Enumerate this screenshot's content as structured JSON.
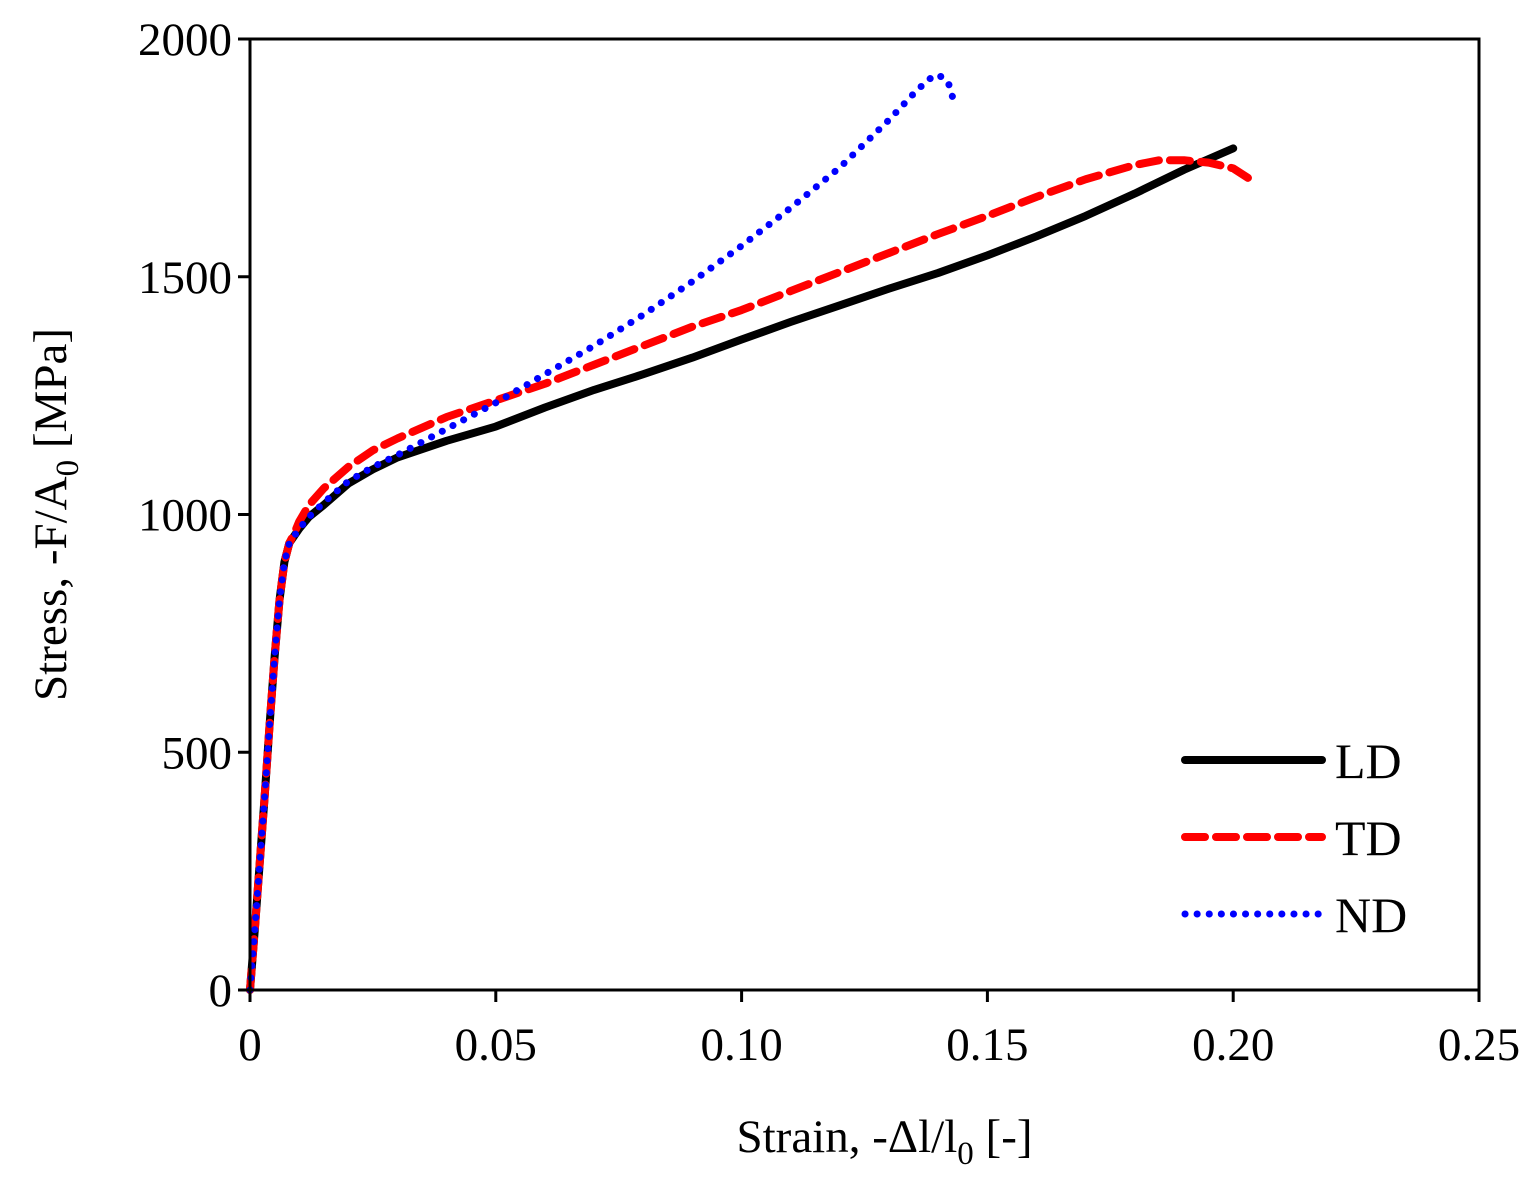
{
  "chart_data": {
    "type": "line",
    "title": "",
    "xlabel": {
      "main": "Strain, -Δl/l",
      "sub": "0",
      "tail": " [-]"
    },
    "ylabel": {
      "main": "Stress, -F/A",
      "sub": "0",
      "tail": " [MPa]"
    },
    "xlim": [
      0,
      0.25
    ],
    "ylim": [
      0,
      2000
    ],
    "xticks": [
      0,
      0.05,
      0.1,
      0.15,
      0.2,
      0.25
    ],
    "xtick_labels": [
      "0",
      "0.05",
      "0.10",
      "0.15",
      "0.20",
      "0.25"
    ],
    "yticks": [
      0,
      500,
      1000,
      1500,
      2000
    ],
    "ytick_labels": [
      "0",
      "500",
      "1000",
      "1500",
      "2000"
    ],
    "grid": false,
    "legend_position": "bottom-right",
    "series": [
      {
        "name": "LD",
        "color": "#000000",
        "style": "solid",
        "x": [
          0,
          0.001,
          0.002,
          0.003,
          0.004,
          0.005,
          0.006,
          0.007,
          0.008,
          0.009,
          0.01,
          0.012,
          0.015,
          0.02,
          0.025,
          0.03,
          0.04,
          0.05,
          0.06,
          0.07,
          0.08,
          0.09,
          0.1,
          0.11,
          0.12,
          0.13,
          0.14,
          0.15,
          0.16,
          0.17,
          0.18,
          0.19,
          0.2
        ],
        "values": [
          0,
          130,
          270,
          410,
          560,
          700,
          820,
          900,
          940,
          955,
          970,
          995,
          1020,
          1065,
          1095,
          1120,
          1155,
          1185,
          1225,
          1262,
          1295,
          1330,
          1368,
          1405,
          1440,
          1475,
          1508,
          1545,
          1585,
          1628,
          1675,
          1725,
          1770
        ]
      },
      {
        "name": "TD",
        "color": "#ff0000",
        "style": "dashed",
        "x": [
          0,
          0.001,
          0.002,
          0.003,
          0.004,
          0.005,
          0.006,
          0.007,
          0.008,
          0.009,
          0.01,
          0.012,
          0.015,
          0.02,
          0.025,
          0.03,
          0.04,
          0.05,
          0.06,
          0.07,
          0.08,
          0.09,
          0.1,
          0.11,
          0.12,
          0.13,
          0.14,
          0.15,
          0.16,
          0.17,
          0.18,
          0.185,
          0.19,
          0.195,
          0.2,
          0.203
        ],
        "values": [
          0,
          130,
          270,
          410,
          560,
          700,
          820,
          900,
          940,
          960,
          985,
          1020,
          1055,
          1100,
          1135,
          1160,
          1205,
          1240,
          1275,
          1315,
          1355,
          1395,
          1430,
          1470,
          1510,
          1550,
          1590,
          1628,
          1668,
          1705,
          1735,
          1745,
          1745,
          1740,
          1728,
          1708
        ]
      },
      {
        "name": "ND",
        "color": "#0000ff",
        "style": "dotted",
        "x": [
          0,
          0.001,
          0.002,
          0.003,
          0.004,
          0.005,
          0.006,
          0.007,
          0.008,
          0.009,
          0.01,
          0.012,
          0.015,
          0.02,
          0.025,
          0.03,
          0.04,
          0.05,
          0.06,
          0.07,
          0.08,
          0.09,
          0.1,
          0.11,
          0.12,
          0.13,
          0.135,
          0.138,
          0.14,
          0.142,
          0.143
        ],
        "values": [
          0,
          130,
          270,
          410,
          560,
          700,
          820,
          900,
          940,
          955,
          970,
          995,
          1025,
          1070,
          1100,
          1125,
          1180,
          1235,
          1295,
          1355,
          1420,
          1490,
          1565,
          1645,
          1730,
          1830,
          1885,
          1915,
          1925,
          1910,
          1875
        ]
      }
    ]
  }
}
